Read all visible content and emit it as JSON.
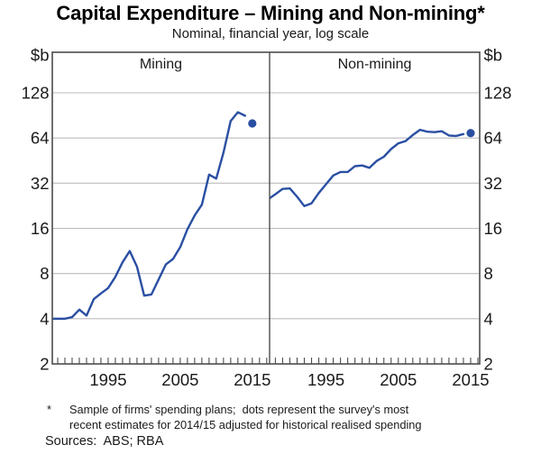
{
  "title": "Capital Expenditure – Mining and Non-mining*",
  "subtitle": "Nominal, financial year, log scale",
  "footnote": {
    "marker": "*",
    "line1": "Sample of firms' spending plans;  dots represent the survey's most",
    "line2": "recent estimates for 2014/15 adjusted for historical realised spending"
  },
  "sources": "Sources:  ABS; RBA",
  "colors": {
    "series_blue": "#2a4fa2",
    "grid": "#bbbbbb",
    "frame": "#4d4d4d",
    "text": "#1a1a1a",
    "background": "#ffffff"
  },
  "chart_data": {
    "type": "line",
    "scale": "log2",
    "unit": "$b",
    "ylim": [
      2,
      240
    ],
    "yticks": [
      2,
      4,
      8,
      16,
      32,
      64,
      128
    ],
    "x_tick_years": [
      1995,
      2005,
      2015
    ],
    "grid": "horizontal only",
    "legend_position": "none",
    "panels": [
      {
        "label": "Mining",
        "xlim": [
          1987.25,
          2017.4
        ],
        "years": [
          1987,
          1988,
          1989,
          1990,
          1991,
          1992,
          1993,
          1994,
          1995,
          1996,
          1997,
          1998,
          1999,
          2000,
          2001,
          2002,
          2003,
          2004,
          2005,
          2006,
          2007,
          2008,
          2009,
          2010,
          2011,
          2012,
          2013,
          2014
        ],
        "values": [
          4.0,
          4.0,
          4.0,
          4.1,
          4.6,
          4.2,
          5.4,
          5.9,
          6.4,
          7.6,
          9.5,
          11.3,
          8.9,
          5.7,
          5.8,
          7.3,
          9.2,
          10.0,
          12.0,
          15.8,
          19.5,
          23.0,
          36.5,
          34.3,
          51.0,
          83.0,
          95.0,
          90.0
        ],
        "dot": {
          "year": 2015,
          "value": 80,
          "meaning": "survey estimate 2014/15"
        }
      },
      {
        "label": "Non-mining",
        "xlim": [
          1987.2,
          2016.25
        ],
        "years": [
          1987,
          1988,
          1989,
          1990,
          1991,
          1992,
          1993,
          1994,
          1995,
          1996,
          1997,
          1998,
          1999,
          2000,
          2001,
          2002,
          2003,
          2004,
          2005,
          2006,
          2007,
          2008,
          2009,
          2010,
          2011,
          2012,
          2013,
          2014
        ],
        "values": [
          25.0,
          27.0,
          29.3,
          29.5,
          26.0,
          22.5,
          23.5,
          27.5,
          31.5,
          36.0,
          38.0,
          38.0,
          41.5,
          42.0,
          40.5,
          45.0,
          48.0,
          54.0,
          59.0,
          61.0,
          67.0,
          72.5,
          70.5,
          70.0,
          71.0,
          66.5,
          66.0,
          68.0
        ],
        "dot": {
          "year": 2015,
          "value": 69,
          "meaning": "survey estimate 2014/15"
        }
      }
    ]
  }
}
